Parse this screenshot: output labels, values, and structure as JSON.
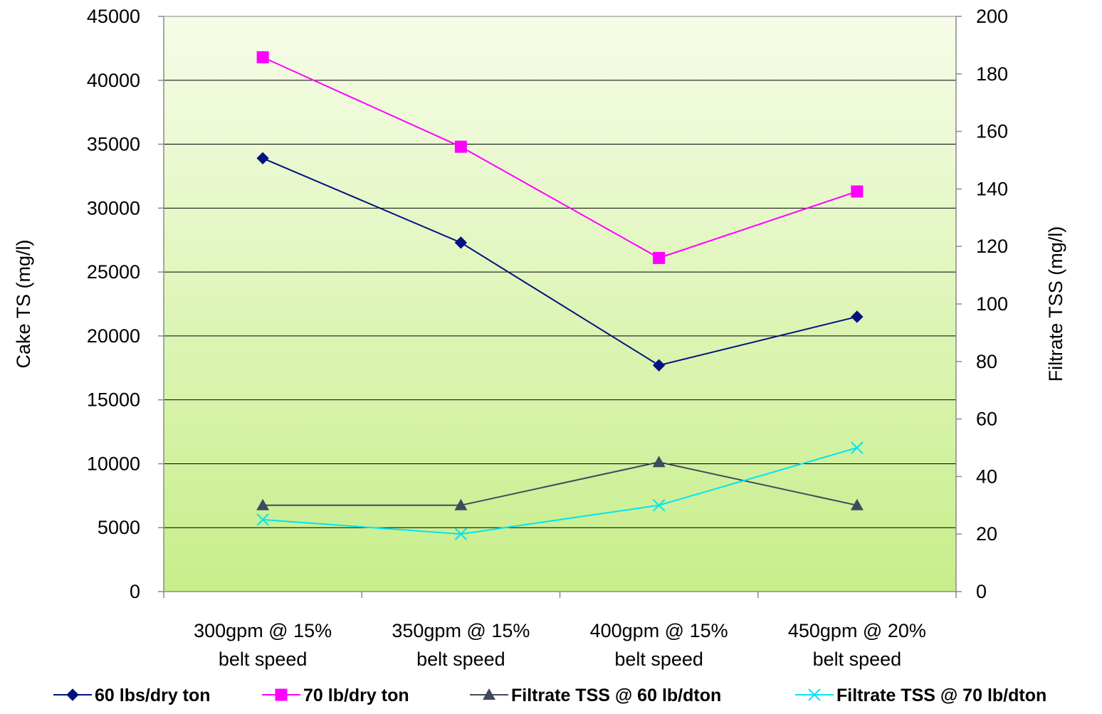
{
  "chart_data": {
    "type": "line",
    "categories": [
      [
        "300gpm @ 15%",
        "belt speed"
      ],
      [
        "350gpm @ 15%",
        "belt speed"
      ],
      [
        "400gpm @ 15%",
        "belt speed"
      ],
      [
        "450gpm @ 20%",
        "belt speed"
      ]
    ],
    "ylabel": "Cake TS (mg/l)",
    "y2label": "Filtrate TSS (mg/l)",
    "ylim": [
      0,
      45000
    ],
    "y2lim": [
      0,
      200
    ],
    "yticks": [
      "0",
      "5000",
      "10000",
      "15000",
      "20000",
      "25000",
      "30000",
      "35000",
      "40000",
      "45000"
    ],
    "y2ticks": [
      "0",
      "20",
      "40",
      "60",
      "80",
      "100",
      "120",
      "140",
      "160",
      "180",
      "200"
    ],
    "grid": true,
    "legend_position": "bottom",
    "series": [
      {
        "name": "60 lbs/dry ton",
        "axis": "left",
        "values": [
          33900,
          27300,
          17700,
          21500
        ],
        "color": "#00137F",
        "marker": "diamond"
      },
      {
        "name": "70 lb/dry ton",
        "axis": "left",
        "values": [
          41800,
          34800,
          26100,
          31300
        ],
        "color": "#FF00FF",
        "marker": "square"
      },
      {
        "name": "Filtrate TSS @ 60 lb/dton",
        "axis": "right",
        "values": [
          30,
          30,
          45,
          30
        ],
        "color": "#404A5E",
        "marker": "triangle"
      },
      {
        "name": "Filtrate TSS @ 70 lb/dton",
        "axis": "right",
        "values": [
          25,
          20,
          30,
          50
        ],
        "color": "#00E5F0",
        "marker": "x"
      }
    ]
  }
}
